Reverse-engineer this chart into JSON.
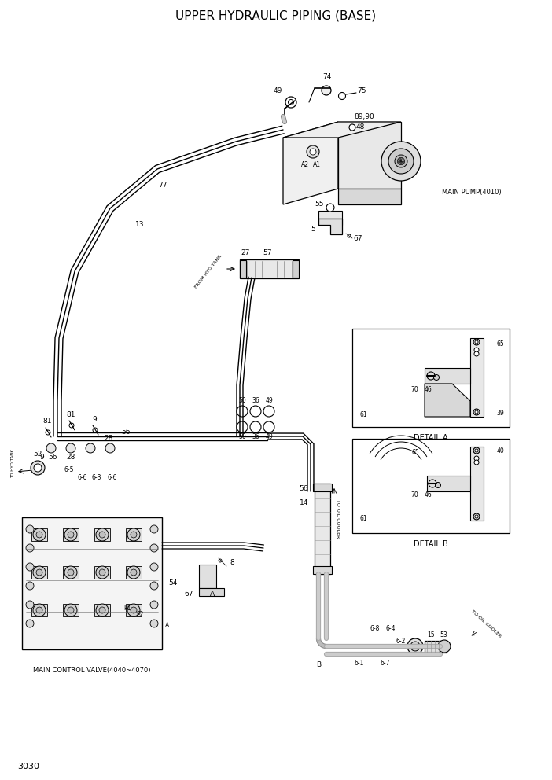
{
  "title": "UPPER HYDRAULIC PIPING (BASE)",
  "page_number": "3030",
  "bg": "#ffffff",
  "lc": "#000000",
  "title_fs": 11,
  "lfs": 6.5,
  "sfs": 5.5,
  "fig_w": 7.02,
  "fig_h": 9.92,
  "detail_a": "DETAIL A",
  "detail_b": "DETAIL B",
  "main_pump": "MAIN PUMP(4010)",
  "mcv_label": "MAIN CONTROL VALVE(4040~4070)",
  "from_hyd": "FROM HYD TANK",
  "to_hyd": "TO HYD TANK",
  "to_oil": "TO OIL COOLER",
  "to_oil2": "TO OIL COOLER"
}
